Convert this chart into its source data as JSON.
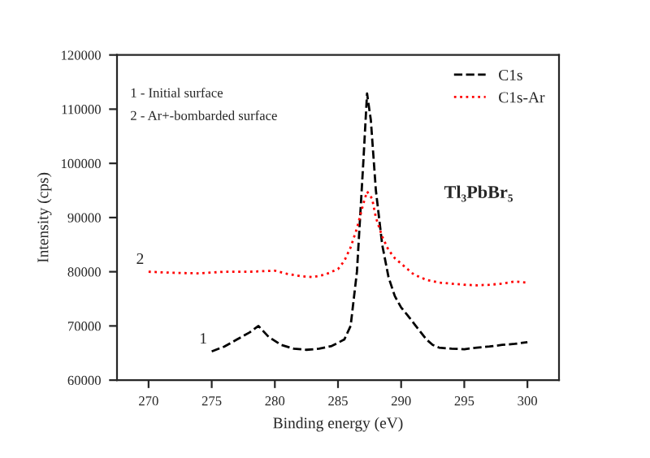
{
  "chart_data": {
    "type": "line",
    "xlabel": "Binding energy (eV)",
    "ylabel": "Intensity (cps)",
    "xlim": [
      267.5,
      302.5
    ],
    "xticks": [
      270,
      275,
      280,
      285,
      290,
      295,
      300
    ],
    "ylim": [
      60000,
      120000
    ],
    "yticks": [
      60000,
      70000,
      80000,
      90000,
      100000,
      110000,
      120000
    ],
    "legend": "top right",
    "grid": false,
    "series": [
      {
        "name": "C1s",
        "color": "#000000",
        "line_style": "dashed",
        "x": [
          275,
          276,
          277,
          278,
          278.7,
          279.5,
          280.5,
          281.5,
          282.5,
          283.5,
          284.5,
          285.5,
          286,
          286.5,
          287,
          287.3,
          287.6,
          288,
          288.5,
          289,
          289.5,
          290,
          290.5,
          291,
          291.5,
          292,
          292.5,
          293,
          294,
          295,
          296,
          297,
          298,
          299,
          300
        ],
        "values": [
          65300,
          66200,
          67500,
          68800,
          70000,
          68000,
          66500,
          65800,
          65600,
          65800,
          66300,
          67500,
          70000,
          80000,
          100000,
          112900,
          108000,
          95000,
          85000,
          79000,
          75500,
          73400,
          72000,
          70500,
          69000,
          67500,
          66500,
          66000,
          65800,
          65700,
          66000,
          66200,
          66500,
          66700,
          67000
        ]
      },
      {
        "name": "C1s-Ar",
        "color": "#ff0000",
        "line_style": "dotted",
        "x": [
          270,
          272,
          274,
          276,
          278,
          280,
          281,
          282,
          283,
          284,
          285,
          285.5,
          286,
          286.5,
          287,
          287.3,
          287.7,
          288,
          288.5,
          289,
          289.5,
          290,
          290.5,
          291,
          292,
          293,
          294,
          295,
          296,
          297,
          298,
          299,
          300
        ],
        "values": [
          80000,
          79800,
          79700,
          80000,
          80000,
          80200,
          79600,
          79200,
          79000,
          79500,
          80500,
          82000,
          84500,
          88000,
          92500,
          94800,
          93500,
          90000,
          86500,
          84000,
          82500,
          81500,
          80500,
          79500,
          78500,
          78000,
          77800,
          77600,
          77500,
          77600,
          77800,
          78200,
          78000
        ]
      }
    ],
    "annotations": [
      "1 - Initial surface",
      "2 - Ar+-bombarded surface",
      {
        "text": "1",
        "x": 275,
        "y": 65300
      },
      {
        "text": "2",
        "x": 270,
        "y": 80000
      },
      "Tl₃PbBr₅"
    ]
  }
}
